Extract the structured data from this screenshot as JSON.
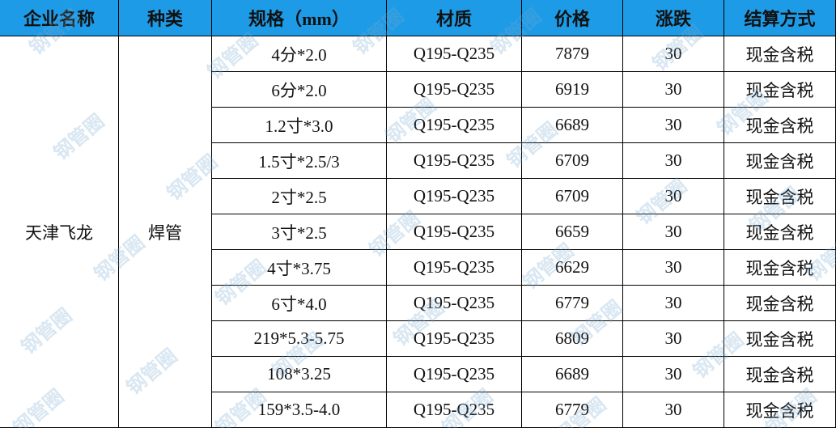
{
  "table": {
    "header": [
      "企业名称",
      "种类",
      "规格（mm）",
      "材质",
      "价格",
      "涨跌",
      "结算方式"
    ],
    "company": "天津飞龙",
    "category": "焊管",
    "rows": [
      [
        "4分*2.0",
        "Q195-Q235",
        7879,
        30,
        "现金含税"
      ],
      [
        "6分*2.0",
        "Q195-Q235",
        6919,
        30,
        "现金含税"
      ],
      [
        "1.2寸*3.0",
        "Q195-Q235",
        6689,
        30,
        "现金含税"
      ],
      [
        "1.5寸*2.5/3",
        "Q195-Q235",
        6709,
        30,
        "现金含税"
      ],
      [
        "2寸*2.5",
        "Q195-Q235",
        6709,
        30,
        "现金含税"
      ],
      [
        "3寸*2.5",
        "Q195-Q235",
        6659,
        30,
        "现金含税"
      ],
      [
        "4寸*3.75",
        "Q195-Q235",
        6629,
        30,
        "现金含税"
      ],
      [
        "6寸*4.0",
        "Q195-Q235",
        6779,
        30,
        "现金含税"
      ],
      [
        "219*5.3-5.75",
        "Q195-Q235",
        6809,
        30,
        "现金含税"
      ],
      [
        "108*3.25",
        "Q195-Q235",
        6689,
        30,
        "现金含税"
      ],
      [
        "159*3.5-4.0",
        "Q195-Q235",
        6779,
        30,
        "现金含税"
      ]
    ]
  },
  "watermark": "钢管圈"
}
